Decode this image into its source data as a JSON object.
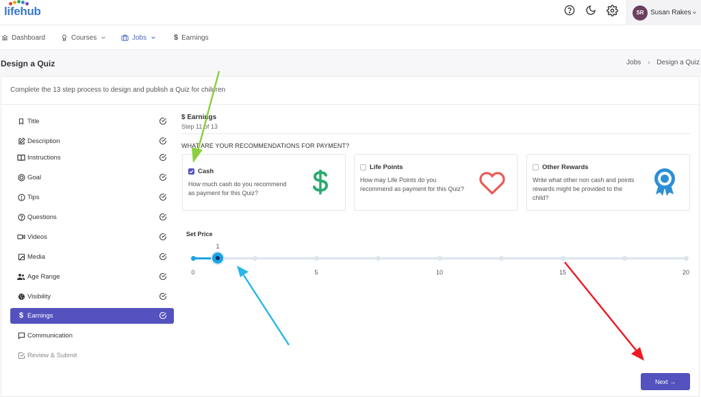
{
  "app": {
    "logo_text": "lifehub",
    "logo_dot_colors": [
      "#e7402e",
      "#f0a021",
      "#2fae4b",
      "#2e88d6",
      "#8c3fb1"
    ]
  },
  "topbar": {
    "user_initials": "SR",
    "user_name": "Susan Rakes",
    "icons": [
      "help-icon",
      "moon-icon",
      "gear-icon",
      "chevron-down-icon"
    ]
  },
  "nav": {
    "items": [
      {
        "label": "Dashboard",
        "icon": "bank-icon"
      },
      {
        "label": "Courses",
        "icon": "award-icon",
        "dropdown": true
      },
      {
        "label": "Jobs",
        "icon": "briefcase-icon",
        "dropdown": true,
        "active": true
      },
      {
        "label": "Earnings",
        "icon": "dollar-icon"
      }
    ]
  },
  "page": {
    "title": "Design a Quiz",
    "breadcrumb": [
      "Jobs",
      "Design a Quiz"
    ],
    "intro": "Complete the 13 step process to design and publish a Quiz for children"
  },
  "steps": [
    {
      "label": "Title",
      "icon": "bookmark-icon",
      "done": true
    },
    {
      "label": "Description",
      "icon": "edit-icon",
      "done": true
    },
    {
      "label": "Instructions",
      "icon": "book-open-icon",
      "done": true
    },
    {
      "label": "Goal",
      "icon": "target-icon",
      "done": true
    },
    {
      "label": "Tips",
      "icon": "alert-circle-icon",
      "done": true
    },
    {
      "label": "Questions",
      "icon": "question-circle-icon",
      "done": true
    },
    {
      "label": "Videos",
      "icon": "video-icon",
      "done": true
    },
    {
      "label": "Media",
      "icon": "image-icon",
      "done": true
    },
    {
      "label": "Age Range",
      "icon": "users-icon",
      "done": true
    },
    {
      "label": "Visibility",
      "icon": "globe-icon",
      "done": true
    },
    {
      "label": "Earnings",
      "icon": "dollar-icon",
      "done": true,
      "active": true
    },
    {
      "label": "Communication",
      "icon": "message-icon",
      "done": false
    },
    {
      "label": "Review & Submit",
      "icon": "check-square-icon",
      "done": false,
      "muted": true
    }
  ],
  "section": {
    "title": "$ Earnings",
    "step_text": "Step 11 of 13",
    "question": "WHAT ARE YOUR RECOMMENDATIONS FOR PAYMENT?"
  },
  "options": [
    {
      "title": "Cash",
      "description": "How much cash do you recommend as payment for this Quiz?",
      "checked": true,
      "icon": "dollar-sign-icon",
      "icon_color": "#2daa6f"
    },
    {
      "title": "Life Points",
      "description": "How may Life Points do you recommend as payment for this Quiz?",
      "checked": false,
      "icon": "heart-icon",
      "icon_color": "#ea5a55"
    },
    {
      "title": "Other Rewards",
      "description": "Write what other non cash and points rewards might be provided to the child?",
      "checked": false,
      "icon": "award-ribbon-icon",
      "icon_color": "#2c8fd6"
    }
  ],
  "price": {
    "label": "Set Price",
    "min": 0,
    "max": 20,
    "value": 1,
    "tick_values": [
      0,
      5,
      10,
      15,
      20
    ],
    "minor_ticks": [
      2.5,
      7.5,
      12.5,
      17.5
    ]
  },
  "footer": {
    "next_label": "Next →"
  },
  "colors": {
    "accent": "#5352be",
    "slider": "#1aa3e0",
    "annotation_green": "#8bcf3f",
    "annotation_blue": "#29b6ea",
    "annotation_red": "#ec1c24"
  }
}
